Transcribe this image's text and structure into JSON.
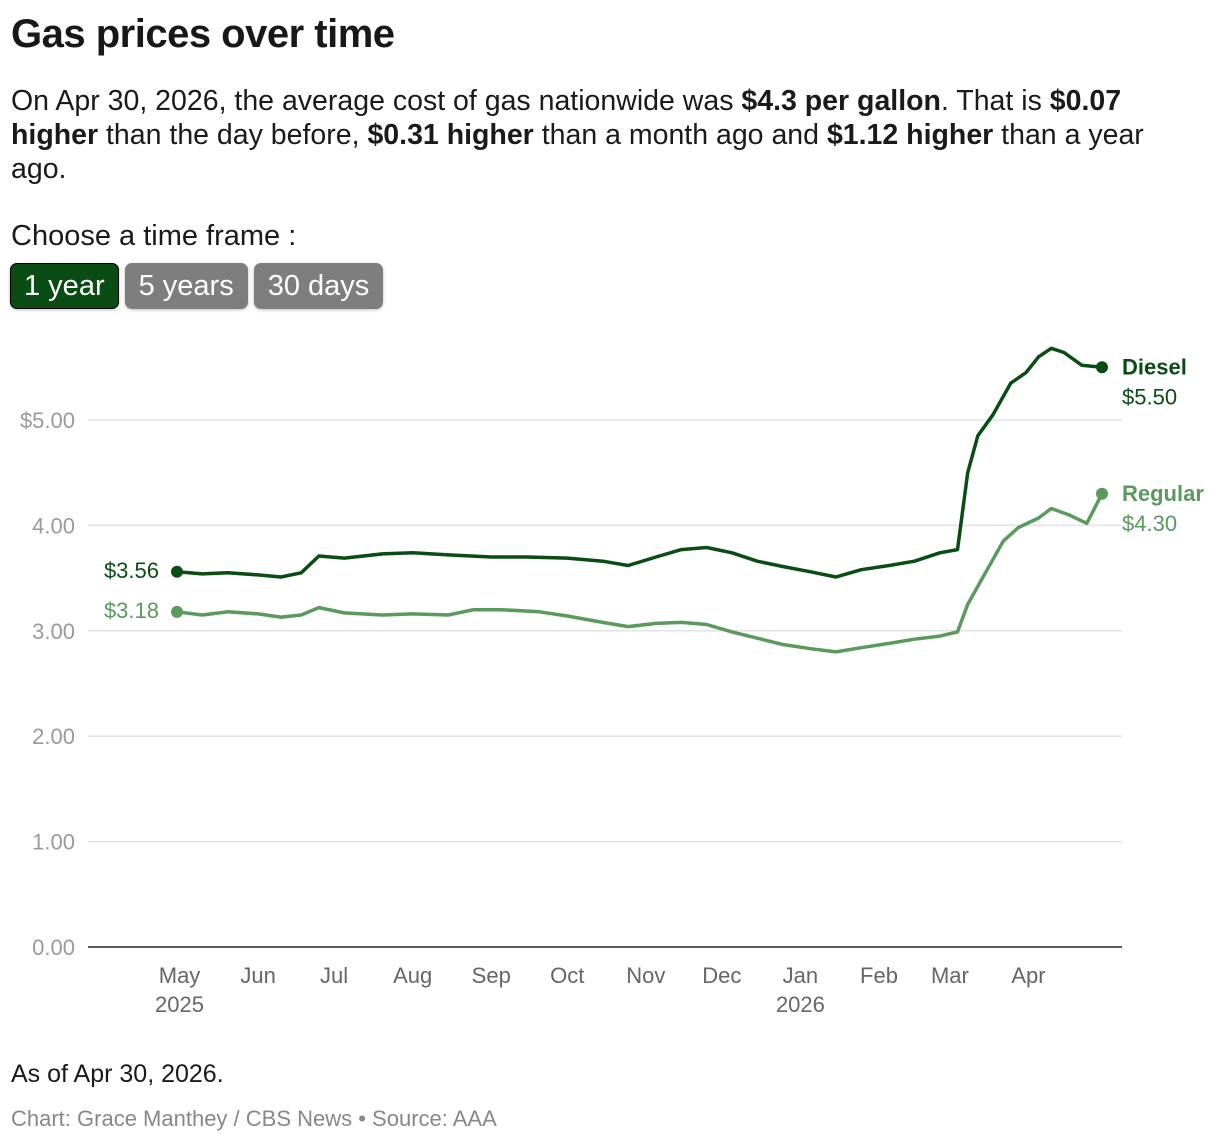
{
  "title": "Gas prices over time",
  "subtitle": {
    "p1": "On Apr 30, 2026, the average cost of gas nationwide was ",
    "b1": "$4.3 per gallon",
    "p2": ". That is ",
    "b2": "$0.07 higher",
    "p3": " than the day before, ",
    "b3": "$0.31 higher",
    "p4": " than a month ago and ",
    "b4": "$1.12 higher",
    "p5": " than a year ago."
  },
  "timeframe": {
    "label": "Choose a time frame :",
    "options": [
      "1 year",
      "5 years",
      "30 days"
    ],
    "selected": "1 year"
  },
  "colors": {
    "diesel": "#0a4d14",
    "regular": "#5a9a5c",
    "active_button": "#0a4d14",
    "inactive_button": "#7e7e7e"
  },
  "chart_data": {
    "type": "line",
    "ylim": [
      0,
      5.5
    ],
    "y_ticks": [
      0,
      1,
      2,
      3,
      4,
      5
    ],
    "y_tick_labels": [
      "0.00",
      "1.00",
      "2.00",
      "3.00",
      "4.00",
      "$5.00"
    ],
    "x_tick_labels": [
      "May",
      "Jun",
      "Jul",
      "Aug",
      "Sep",
      "Oct",
      "Nov",
      "Dec",
      "Jan",
      "Feb",
      "Mar",
      "Apr"
    ],
    "x_tick_dates": [
      "2025-05-01",
      "2025-06-01",
      "2025-07-01",
      "2025-08-01",
      "2025-09-01",
      "2025-10-01",
      "2025-11-01",
      "2025-12-01",
      "2026-01-01",
      "2026-02-01",
      "2026-03-01",
      "2026-04-01"
    ],
    "x_year_labels": [
      {
        "date": "2025-05-01",
        "label": "2025"
      },
      {
        "date": "2026-01-01",
        "label": "2026"
      }
    ],
    "x_range": [
      "2025-04-30",
      "2026-04-30"
    ],
    "grid": true,
    "series": [
      {
        "name": "Diesel",
        "start_label": "$3.56",
        "end_label": "$5.50",
        "points": [
          [
            "2025-04-30",
            3.56
          ],
          [
            "2025-05-10",
            3.54
          ],
          [
            "2025-05-20",
            3.55
          ],
          [
            "2025-06-01",
            3.53
          ],
          [
            "2025-06-10",
            3.51
          ],
          [
            "2025-06-18",
            3.55
          ],
          [
            "2025-06-25",
            3.71
          ],
          [
            "2025-07-05",
            3.69
          ],
          [
            "2025-07-20",
            3.73
          ],
          [
            "2025-08-01",
            3.74
          ],
          [
            "2025-08-15",
            3.72
          ],
          [
            "2025-09-01",
            3.7
          ],
          [
            "2025-09-15",
            3.7
          ],
          [
            "2025-10-01",
            3.69
          ],
          [
            "2025-10-15",
            3.66
          ],
          [
            "2025-10-25",
            3.62
          ],
          [
            "2025-11-05",
            3.7
          ],
          [
            "2025-11-15",
            3.77
          ],
          [
            "2025-11-25",
            3.79
          ],
          [
            "2025-12-05",
            3.74
          ],
          [
            "2025-12-15",
            3.66
          ],
          [
            "2025-12-25",
            3.61
          ],
          [
            "2026-01-05",
            3.56
          ],
          [
            "2026-01-15",
            3.51
          ],
          [
            "2026-01-25",
            3.58
          ],
          [
            "2026-02-05",
            3.62
          ],
          [
            "2026-02-15",
            3.66
          ],
          [
            "2026-02-25",
            3.74
          ],
          [
            "2026-03-04",
            3.77
          ],
          [
            "2026-03-08",
            4.5
          ],
          [
            "2026-03-12",
            4.85
          ],
          [
            "2026-03-18",
            5.05
          ],
          [
            "2026-03-25",
            5.35
          ],
          [
            "2026-03-31",
            5.45
          ],
          [
            "2026-04-05",
            5.6
          ],
          [
            "2026-04-10",
            5.68
          ],
          [
            "2026-04-15",
            5.64
          ],
          [
            "2026-04-22",
            5.52
          ],
          [
            "2026-04-30",
            5.5
          ]
        ]
      },
      {
        "name": "Regular",
        "start_label": "$3.18",
        "end_label": "$4.30",
        "points": [
          [
            "2025-04-30",
            3.18
          ],
          [
            "2025-05-10",
            3.15
          ],
          [
            "2025-05-20",
            3.18
          ],
          [
            "2025-06-01",
            3.16
          ],
          [
            "2025-06-10",
            3.13
          ],
          [
            "2025-06-18",
            3.15
          ],
          [
            "2025-06-25",
            3.22
          ],
          [
            "2025-07-05",
            3.17
          ],
          [
            "2025-07-20",
            3.15
          ],
          [
            "2025-08-01",
            3.16
          ],
          [
            "2025-08-15",
            3.15
          ],
          [
            "2025-08-25",
            3.2
          ],
          [
            "2025-09-05",
            3.2
          ],
          [
            "2025-09-20",
            3.18
          ],
          [
            "2025-10-01",
            3.14
          ],
          [
            "2025-10-15",
            3.08
          ],
          [
            "2025-10-25",
            3.04
          ],
          [
            "2025-11-05",
            3.07
          ],
          [
            "2025-11-15",
            3.08
          ],
          [
            "2025-11-25",
            3.06
          ],
          [
            "2025-12-05",
            2.99
          ],
          [
            "2025-12-15",
            2.93
          ],
          [
            "2025-12-25",
            2.87
          ],
          [
            "2026-01-05",
            2.83
          ],
          [
            "2026-01-15",
            2.8
          ],
          [
            "2026-01-25",
            2.84
          ],
          [
            "2026-02-05",
            2.88
          ],
          [
            "2026-02-15",
            2.92
          ],
          [
            "2026-02-25",
            2.95
          ],
          [
            "2026-03-04",
            2.99
          ],
          [
            "2026-03-08",
            3.25
          ],
          [
            "2026-03-15",
            3.55
          ],
          [
            "2026-03-22",
            3.85
          ],
          [
            "2026-03-28",
            3.98
          ],
          [
            "2026-04-05",
            4.07
          ],
          [
            "2026-04-10",
            4.16
          ],
          [
            "2026-04-17",
            4.1
          ],
          [
            "2026-04-24",
            4.02
          ],
          [
            "2026-04-30",
            4.3
          ]
        ]
      }
    ]
  },
  "note": "As of Apr 30, 2026.",
  "credit": "Chart: Grace Manthey / CBS News • Source: AAA"
}
